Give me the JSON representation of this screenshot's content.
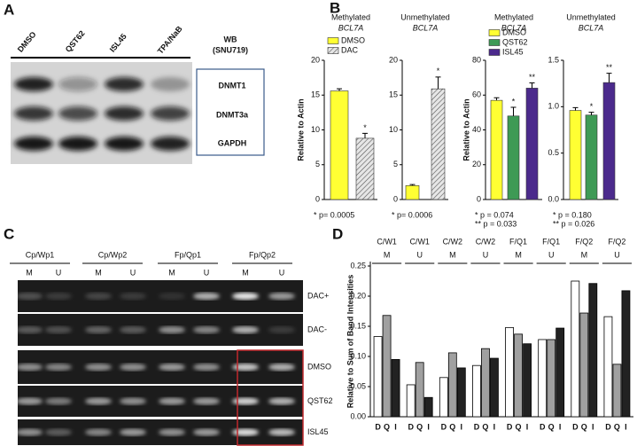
{
  "panels": {
    "a": {
      "letter": "A",
      "lanes": [
        "DMSO",
        "QST62",
        "ISL45",
        "TPA/NaB"
      ],
      "wb": "WB",
      "cell": "(SNU719)",
      "rows": [
        "DNMT1",
        "DNMT3a",
        "GAPDH"
      ]
    },
    "b": {
      "letter": "B"
    },
    "c": {
      "letter": "C",
      "groups": [
        "Cp/Wp1",
        "Cp/Wp2",
        "Fp/Qp1",
        "Fp/Qp2"
      ],
      "lanes": [
        "M",
        "U",
        "M",
        "U",
        "M",
        "U",
        "M",
        "U"
      ],
      "rows": [
        "DAC+",
        "DAC-",
        "DMSO",
        "QST62",
        "ISL45"
      ]
    },
    "d": {
      "letter": "D"
    }
  },
  "chart_data": [
    {
      "type": "bar",
      "title": "Methylated",
      "subtitle": "BCL7A",
      "ylabel": "Relative to Actin",
      "categories": [
        "DMSO",
        "DAC"
      ],
      "values": [
        15.6,
        8.8
      ],
      "errors": [
        0.3,
        0.7
      ],
      "colors": [
        "#ffff33",
        "#d0d0d0"
      ],
      "patterns": [
        null,
        "hatch"
      ],
      "significance": [
        null,
        "*"
      ],
      "legend": true,
      "ylim": [
        0,
        20
      ],
      "yticks": [
        0,
        5,
        10,
        15,
        20
      ],
      "footnotes": [
        "* p= 0.0005"
      ]
    },
    {
      "type": "bar",
      "title": "Unmethylated",
      "subtitle": "BCL7A",
      "categories": [
        "DMSO",
        "DAC"
      ],
      "values": [
        2.0,
        15.9
      ],
      "errors": [
        0.15,
        1.7
      ],
      "colors": [
        "#ffff33",
        "#d0d0d0"
      ],
      "patterns": [
        null,
        "hatch"
      ],
      "significance": [
        null,
        "*"
      ],
      "legend": false,
      "ylim": [
        0,
        20
      ],
      "yticks": [
        0,
        5,
        10,
        15,
        20
      ],
      "footnotes": [
        "* p= 0.0006"
      ]
    },
    {
      "type": "bar",
      "title": "Methylated",
      "subtitle": "BCL7A",
      "ylabel": "Relative to Actin",
      "categories": [
        "DMSO",
        "QST62",
        "ISL45"
      ],
      "values": [
        57,
        48,
        64
      ],
      "errors": [
        1.5,
        5,
        3
      ],
      "colors": [
        "#ffff33",
        "#3e9a55",
        "#4b2a8c"
      ],
      "patterns": [
        null,
        null,
        null
      ],
      "significance": [
        null,
        "*",
        "**"
      ],
      "legend": true,
      "ylim": [
        0,
        80
      ],
      "yticks": [
        0,
        20,
        40,
        60,
        80
      ],
      "footnotes": [
        "* p = 0.074",
        "** p = 0.033"
      ]
    },
    {
      "type": "bar",
      "title": "Unmethylated",
      "subtitle": "BCL7A",
      "categories": [
        "DMSO",
        "QST62",
        "ISL45"
      ],
      "values": [
        0.96,
        0.91,
        1.26
      ],
      "errors": [
        0.03,
        0.03,
        0.1
      ],
      "colors": [
        "#ffff33",
        "#3e9a55",
        "#4b2a8c"
      ],
      "patterns": [
        null,
        null,
        null
      ],
      "significance": [
        null,
        "*",
        "**"
      ],
      "legend": false,
      "ylim": [
        0,
        1.5
      ],
      "yticks": [
        {
          "value": 0,
          "label": "0.0"
        },
        {
          "value": 0.5,
          "label": "0.5"
        },
        {
          "value": 1,
          "label": "1.0"
        },
        {
          "value": 1.5,
          "label": "1.5"
        }
      ],
      "footnotes": [
        "* p = 0.180",
        "** p = 0.026"
      ]
    },
    {
      "type": "grouped_bar",
      "ylabel": "Relative to Sum of Band Intensities",
      "categories": [
        [
          "C/W1",
          "M"
        ],
        [
          "C/W1",
          "U"
        ],
        [
          "C/W2",
          "M"
        ],
        [
          "C/W2",
          "U"
        ],
        [
          "F/Q1",
          "M"
        ],
        [
          "F/Q1",
          "U"
        ],
        [
          "F/Q2",
          "M"
        ],
        [
          "F/Q2",
          "U"
        ]
      ],
      "series": [
        {
          "name": "D",
          "color": "#ffffff",
          "values": [
            0.133,
            0.053,
            0.065,
            0.085,
            0.148,
            0.128,
            0.225,
            0.166
          ]
        },
        {
          "name": "Q",
          "color": "#a0a0a0",
          "values": [
            0.168,
            0.09,
            0.106,
            0.113,
            0.137,
            0.128,
            0.172,
            0.087
          ]
        },
        {
          "name": "I",
          "color": "#222222",
          "values": [
            0.095,
            0.032,
            0.081,
            0.097,
            0.121,
            0.147,
            0.221,
            0.209
          ]
        }
      ],
      "ylim": [
        0,
        0.25
      ],
      "yticks": [
        {
          "value": 0,
          "label": "0.00"
        },
        {
          "value": 0.05,
          "label": "0.05"
        },
        {
          "value": 0.1,
          "label": "0.10"
        },
        {
          "value": 0.15,
          "label": "0.15"
        },
        {
          "value": 0.2,
          "label": "0.20"
        },
        {
          "value": 0.25,
          "label": "0.25"
        }
      ]
    }
  ]
}
